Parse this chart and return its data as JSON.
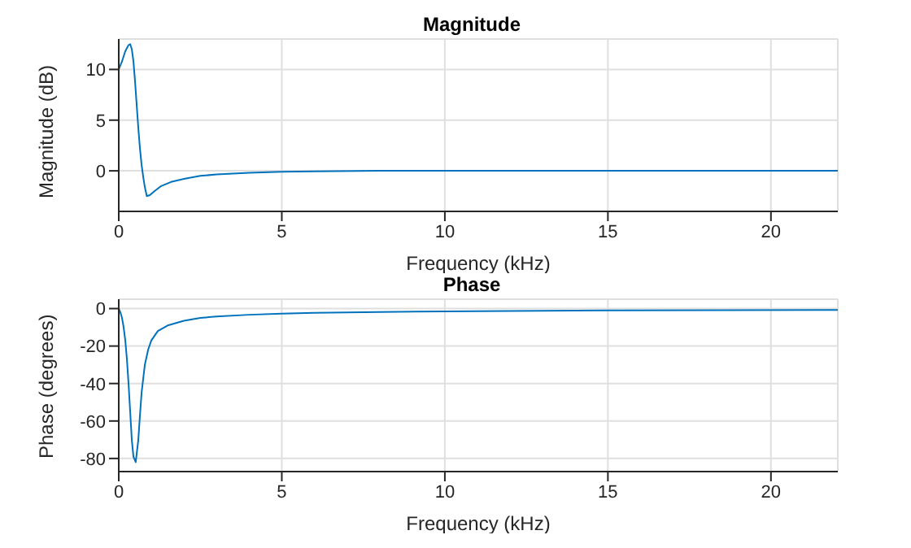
{
  "chart_data": [
    {
      "type": "line",
      "title": "Magnitude",
      "xlabel": "Frequency (kHz)",
      "ylabel": "Magnitude (dB)",
      "xlim": [
        0,
        22.05
      ],
      "xticks": [
        0,
        5,
        10,
        15,
        20
      ],
      "ylim": [
        -4,
        13
      ],
      "yticks": [
        0,
        5,
        10
      ],
      "grid": true,
      "marker": "none",
      "series": [
        {
          "color": "#0072bd",
          "x": [
            0,
            0.1,
            0.2,
            0.3,
            0.35,
            0.4,
            0.45,
            0.5,
            0.55,
            0.6,
            0.65,
            0.7,
            0.75,
            0.8,
            0.86,
            0.95,
            1.1,
            1.3,
            1.6,
            2,
            2.5,
            3,
            4,
            5,
            6,
            8,
            10,
            15,
            22.05
          ],
          "values": [
            10,
            10.8,
            11.8,
            12.4,
            12.5,
            12.0,
            10.8,
            8.8,
            6.5,
            4.2,
            2.2,
            0.6,
            -0.6,
            -1.6,
            -2.5,
            -2.4,
            -2.0,
            -1.5,
            -1.1,
            -0.8,
            -0.5,
            -0.35,
            -0.2,
            -0.1,
            -0.05,
            0,
            0,
            0,
            0
          ]
        }
      ]
    },
    {
      "type": "line",
      "title": "Phase",
      "xlabel": "Frequency (kHz)",
      "ylabel": "Phase (degrees)",
      "xlim": [
        0,
        22.05
      ],
      "xticks": [
        0,
        5,
        10,
        15,
        20
      ],
      "ylim": [
        -87,
        5
      ],
      "yticks": [
        -80,
        -60,
        -40,
        -20,
        0
      ],
      "grid": true,
      "marker": "none",
      "series": [
        {
          "color": "#0072bd",
          "x": [
            0,
            0.05,
            0.1,
            0.15,
            0.2,
            0.25,
            0.3,
            0.35,
            0.4,
            0.45,
            0.52,
            0.6,
            0.65,
            0.7,
            0.8,
            0.9,
            1.0,
            1.2,
            1.5,
            2,
            2.5,
            3,
            4,
            5,
            6,
            8,
            10,
            15,
            22.05
          ],
          "values": [
            0,
            -2,
            -5,
            -10,
            -17,
            -27,
            -40,
            -55,
            -70,
            -79,
            -82,
            -70,
            -57,
            -45,
            -30,
            -22,
            -17,
            -12,
            -9,
            -6.5,
            -5,
            -4.2,
            -3.3,
            -2.7,
            -2.3,
            -1.8,
            -1.5,
            -1,
            -0.7
          ]
        }
      ]
    }
  ]
}
